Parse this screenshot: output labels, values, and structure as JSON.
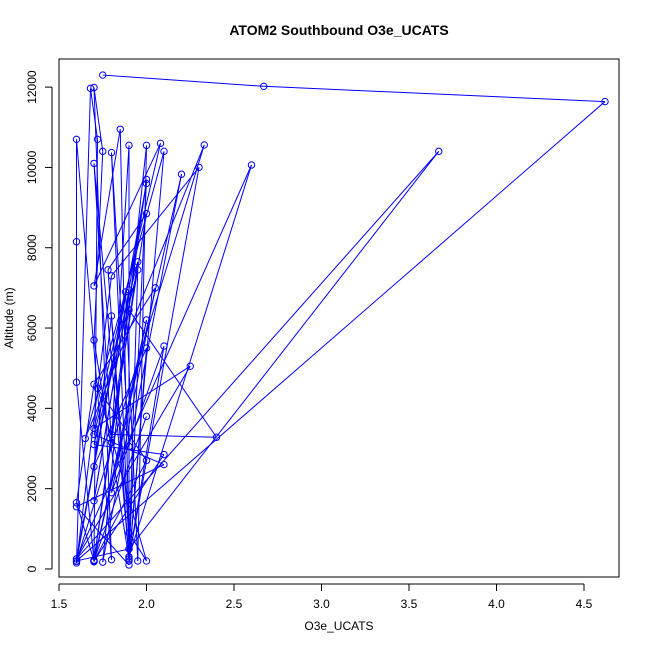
{
  "chart_data": {
    "type": "line",
    "title": "ATOM2 Southbound O3e_UCATS",
    "xlabel": "O3e_UCATS",
    "ylabel": "Altitude (m)",
    "xlim": [
      1.5,
      4.7
    ],
    "ylim": [
      -200,
      12700
    ],
    "x_ticks": [
      "1.5",
      "2.0",
      "2.5",
      "3.0",
      "3.5",
      "4.0",
      "4.5"
    ],
    "y_ticks": [
      "0",
      "2000",
      "4000",
      "6000",
      "8000",
      "10000",
      "12000"
    ],
    "grid": false,
    "series": [
      {
        "color": "#0000ff",
        "marker": "open-circle",
        "points": [
          [
            1.75,
            12300
          ],
          [
            2.67,
            12020
          ],
          [
            4.62,
            11640
          ],
          [
            1.6,
            200
          ],
          [
            1.9,
            500
          ],
          [
            3.67,
            10400
          ],
          [
            1.6,
            250
          ],
          [
            2.6,
            10060
          ],
          [
            1.9,
            300
          ],
          [
            2.0,
            9700
          ],
          [
            1.7,
            200
          ],
          [
            1.6,
            4650
          ],
          [
            1.6,
            8150
          ],
          [
            1.6,
            10700
          ],
          [
            1.8,
            230
          ],
          [
            1.7,
            11990
          ],
          [
            1.75,
            10400
          ],
          [
            1.7,
            5700
          ],
          [
            1.9,
            250
          ],
          [
            2.3,
            10000
          ],
          [
            1.8,
            7300
          ],
          [
            1.6,
            150
          ],
          [
            1.68,
            11970
          ],
          [
            1.72,
            10700
          ],
          [
            1.7,
            180
          ],
          [
            2.2,
            9830
          ],
          [
            1.9,
            3050
          ],
          [
            1.8,
            10370
          ],
          [
            1.9,
            500
          ],
          [
            1.85,
            10950
          ],
          [
            1.7,
            7050
          ],
          [
            2.08,
            10600
          ],
          [
            1.7,
            3500
          ],
          [
            2.25,
            5050
          ],
          [
            1.6,
            250
          ],
          [
            1.88,
            6900
          ],
          [
            1.95,
            200
          ],
          [
            2.0,
            10550
          ],
          [
            1.9,
            6450
          ],
          [
            2.4,
            3280
          ],
          [
            1.8,
            3350
          ],
          [
            2.0,
            8850
          ],
          [
            1.78,
            7450
          ],
          [
            1.9,
            200
          ],
          [
            2.1,
            10400
          ],
          [
            1.65,
            3250
          ],
          [
            2.33,
            10560
          ],
          [
            1.6,
            190
          ],
          [
            2.0,
            9600
          ],
          [
            1.7,
            1700
          ],
          [
            1.9,
            6950
          ],
          [
            1.75,
            170
          ],
          [
            2.05,
            7000
          ],
          [
            1.7,
            4600
          ],
          [
            1.6,
            1650
          ],
          [
            1.7,
            200
          ],
          [
            2.0,
            6200
          ],
          [
            1.8,
            1900
          ],
          [
            2.1,
            5550
          ],
          [
            1.9,
            250
          ],
          [
            1.9,
            10550
          ],
          [
            1.8,
            3150
          ],
          [
            1.7,
            10100
          ],
          [
            1.9,
            300
          ],
          [
            1.95,
            7450
          ],
          [
            1.7,
            3100
          ],
          [
            2.1,
            2850
          ],
          [
            1.7,
            200
          ],
          [
            2.0,
            2700
          ],
          [
            1.72,
            4500
          ],
          [
            2.0,
            200
          ],
          [
            1.9,
            900
          ],
          [
            1.8,
            6300
          ],
          [
            1.7,
            2550
          ],
          [
            2.0,
            5500
          ],
          [
            1.9,
            100
          ],
          [
            1.6,
            1550
          ],
          [
            2.1,
            2600
          ],
          [
            1.7,
            3350
          ],
          [
            1.95,
            7650
          ],
          [
            1.7,
            220
          ],
          [
            2.0,
            3800
          ]
        ]
      }
    ]
  }
}
